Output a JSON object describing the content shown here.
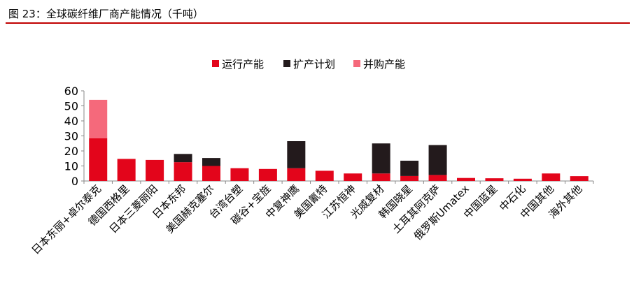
{
  "figure": {
    "title": "图 23：全球碳纤维厂商产能情况（千吨）"
  },
  "chart_data": {
    "type": "bar",
    "stacked": true,
    "title": "",
    "xlabel": "",
    "ylabel": "",
    "ylim": [
      0,
      60
    ],
    "yticks": [
      "0",
      "10",
      "20",
      "30",
      "40",
      "50",
      "60"
    ],
    "grid": false,
    "legend_position": "top",
    "categories": [
      "日本东丽+卓尔泰克",
      "德国西格里",
      "日本三菱丽阳",
      "日本东邦",
      "美国赫克塞尔",
      "台湾台塑",
      "碳谷+宝旌",
      "中复神鹰",
      "美国氰特",
      "江苏恒神",
      "光威复材",
      "韩国晓星",
      "土耳其阿克萨",
      "俄罗斯Umatex",
      "中国蓝星",
      "中石化",
      "中国其他",
      "海外其他"
    ],
    "series": [
      {
        "name": "运行产能",
        "color": "#e3051b",
        "values": [
          28.5,
          14.7,
          14.0,
          12.5,
          10.0,
          8.5,
          8.0,
          8.5,
          6.8,
          5.0,
          5.0,
          3.3,
          4.0,
          2.0,
          1.8,
          1.5,
          5.0,
          3.2
        ]
      },
      {
        "name": "扩产计划",
        "color": "#231a1c",
        "values": [
          0,
          0,
          0,
          5.5,
          5.3,
          0,
          0,
          18.0,
          0,
          0,
          20.0,
          10.2,
          19.9,
          0,
          0,
          0,
          0,
          0
        ]
      },
      {
        "name": "并购产能",
        "color": "#f5697b",
        "values": [
          25.5,
          0,
          0,
          0,
          0,
          0,
          0,
          0,
          0,
          0,
          0,
          0,
          0,
          0,
          0,
          0,
          0,
          0
        ]
      }
    ]
  }
}
